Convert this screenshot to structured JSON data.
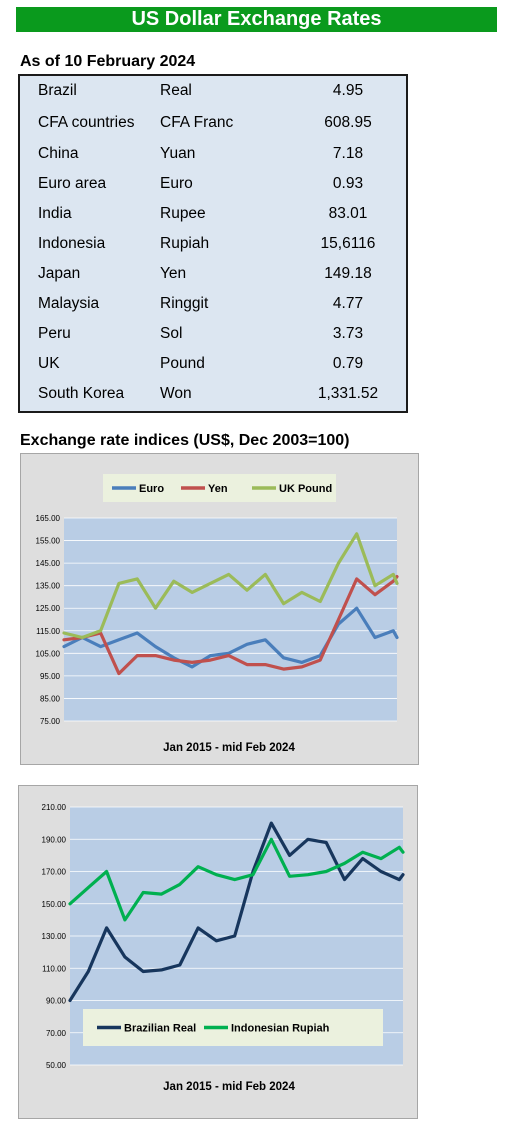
{
  "title": "US Dollar Exchange Rates",
  "as_of": "As of 10 February 2024",
  "rates": [
    {
      "country": "Brazil",
      "currency": "Real",
      "value": "4.95"
    },
    {
      "country": "CFA countries",
      "currency": "CFA Franc",
      "value": "608.95"
    },
    {
      "country": "China",
      "currency": "Yuan",
      "value": "7.18"
    },
    {
      "country": "Euro area",
      "currency": "Euro",
      "value": "0.93"
    },
    {
      "country": "India",
      "currency": "Rupee",
      "value": "83.01"
    },
    {
      "country": "Indonesia",
      "currency": "Rupiah",
      "value": "15,6116"
    },
    {
      "country": "Japan",
      "currency": "Yen",
      "value": "149.18"
    },
    {
      "country": "Malaysia",
      "currency": "Ringgit",
      "value": "4.77"
    },
    {
      "country": "Peru",
      "currency": "Sol",
      "value": "3.73"
    },
    {
      "country": "UK",
      "currency": "Pound",
      "value": "0.79"
    },
    {
      "country": "South Korea",
      "currency": "Won",
      "value": "1,331.52"
    }
  ],
  "indices_title": "Exchange rate indices (US$, Dec 2003=100)",
  "chart_data": [
    {
      "type": "line",
      "xlabel": "Jan 2015 - mid Feb 2024",
      "ylim": [
        75,
        165
      ],
      "yticks": [
        "75.00",
        "85.00",
        "95.00",
        "105.00",
        "115.00",
        "125.00",
        "135.00",
        "145.00",
        "155.00",
        "165.00"
      ],
      "grid": true,
      "legend_position": "top",
      "x": [
        2015.0,
        2015.5,
        2016.0,
        2016.5,
        2017.0,
        2017.5,
        2018.0,
        2018.5,
        2019.0,
        2019.5,
        2020.0,
        2020.5,
        2021.0,
        2021.5,
        2022.0,
        2022.5,
        2023.0,
        2023.5,
        2024.0,
        2024.1
      ],
      "series": [
        {
          "name": "Euro",
          "color": "#4a7ebb",
          "values": [
            108,
            112,
            108,
            111,
            114,
            108,
            103,
            99,
            104,
            105,
            109,
            111,
            103,
            101,
            104,
            118,
            125,
            112,
            115,
            112
          ]
        },
        {
          "name": "Yen",
          "color": "#c0504d",
          "values": [
            111,
            112,
            114,
            96,
            104,
            104,
            102,
            101,
            102,
            104,
            100,
            100,
            98,
            99,
            102,
            120,
            138,
            131,
            137,
            139
          ]
        },
        {
          "name": "UK Pound",
          "color": "#9bbb59",
          "values": [
            114,
            112,
            115,
            136,
            138,
            125,
            137,
            132,
            136,
            140,
            133,
            140,
            127,
            132,
            128,
            145,
            158,
            135,
            140,
            136
          ]
        }
      ]
    },
    {
      "type": "line",
      "xlabel": "Jan 2015 - mid Feb 2024",
      "ylim": [
        50,
        210
      ],
      "yticks": [
        "50.00",
        "70.00",
        "90.00",
        "110.00",
        "130.00",
        "150.00",
        "170.00",
        "190.00",
        "210.00"
      ],
      "grid": true,
      "legend_position": "bottom",
      "x": [
        2015.0,
        2015.5,
        2016.0,
        2016.5,
        2017.0,
        2017.5,
        2018.0,
        2018.5,
        2019.0,
        2019.5,
        2020.0,
        2020.5,
        2021.0,
        2021.5,
        2022.0,
        2022.5,
        2023.0,
        2023.5,
        2024.0,
        2024.1
      ],
      "series": [
        {
          "name": "Brazilian Real",
          "color": "#17365d",
          "values": [
            90,
            108,
            135,
            117,
            108,
            109,
            112,
            135,
            127,
            130,
            170,
            200,
            180,
            190,
            188,
            165,
            178,
            170,
            165,
            168
          ]
        },
        {
          "name": "Indonesian Rupiah",
          "color": "#00b050",
          "values": [
            150,
            160,
            170,
            140,
            157,
            156,
            162,
            173,
            168,
            165,
            168,
            190,
            167,
            168,
            170,
            175,
            182,
            178,
            185,
            182
          ]
        }
      ]
    }
  ]
}
